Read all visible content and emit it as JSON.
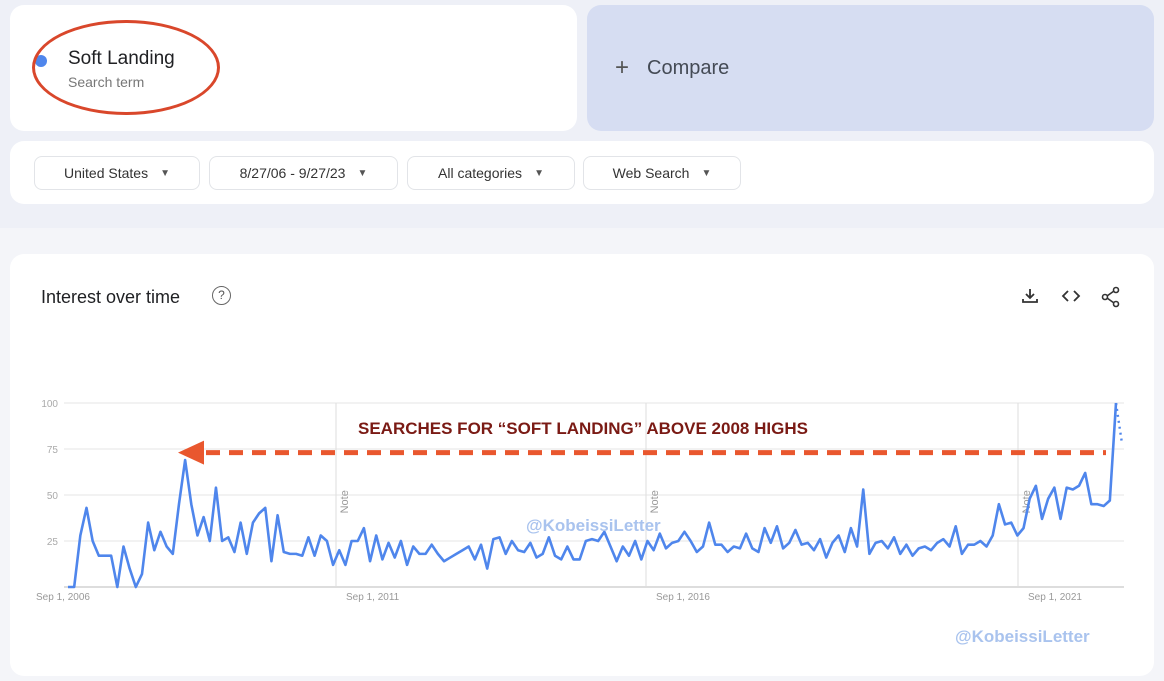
{
  "search": {
    "term": "Soft Landing",
    "subtitle": "Search term",
    "term_color": "#4f86ec"
  },
  "compare": {
    "label": "Compare",
    "icon": "plus-icon"
  },
  "filters": {
    "region": "United States",
    "date_range": "8/27/06 - 9/27/23",
    "category": "All categories",
    "search_type": "Web Search"
  },
  "panel": {
    "title": "Interest over time",
    "help_icon": "help-circle-icon",
    "actions": [
      "download-icon",
      "embed-code-icon",
      "share-icon"
    ]
  },
  "annotation": {
    "text": "SEARCHES FOR “SOFT LANDING” ABOVE 2008 HIGHS",
    "color": "#7a1a14",
    "arrow_color": "#e9572e",
    "level": 73
  },
  "watermark": "@KobeissiLetter",
  "chart_data": {
    "type": "line",
    "title": "Interest over time",
    "ylim": [
      0,
      100
    ],
    "y_ticks": [
      "100",
      "75",
      "50",
      "25"
    ],
    "x_ticks": [
      "Sep 1, 2006",
      "Sep 1, 2011",
      "Sep 1, 2016",
      "Sep 1, 2021"
    ],
    "notes": [
      "Note",
      "Note",
      "Note"
    ],
    "grid": true,
    "color": "#4f86ec",
    "values": [
      0,
      0,
      28,
      43,
      25,
      17,
      17,
      17,
      0,
      22,
      10,
      0,
      7,
      35,
      20,
      30,
      22,
      18,
      45,
      69,
      45,
      28,
      38,
      25,
      54,
      25,
      27,
      19,
      35,
      18,
      35,
      40,
      43,
      14,
      39,
      19,
      18,
      18,
      17,
      27,
      17,
      28,
      25,
      12,
      20,
      12,
      25,
      25,
      32,
      14,
      28,
      15,
      24,
      16,
      25,
      12,
      22,
      18,
      18,
      23,
      18,
      14,
      16,
      18,
      20,
      22,
      15,
      23,
      10,
      26,
      27,
      18,
      25,
      20,
      19,
      24,
      16,
      18,
      27,
      17,
      15,
      22,
      15,
      15,
      25,
      26,
      25,
      30,
      22,
      14,
      22,
      17,
      25,
      15,
      25,
      20,
      29,
      21,
      24,
      25,
      30,
      25,
      19,
      22,
      35,
      23,
      23,
      19,
      22,
      21,
      29,
      21,
      19,
      32,
      24,
      33,
      21,
      24,
      31,
      23,
      24,
      20,
      26,
      16,
      24,
      28,
      19,
      32,
      22,
      53,
      18,
      24,
      25,
      21,
      27,
      18,
      23,
      17,
      21,
      22,
      20,
      24,
      26,
      22,
      33,
      18,
      23,
      23,
      25,
      22,
      28,
      45,
      34,
      35,
      28,
      32,
      48,
      55,
      37,
      48,
      54,
      37,
      54,
      53,
      55,
      62,
      45,
      45,
      44,
      47,
      100
    ]
  }
}
